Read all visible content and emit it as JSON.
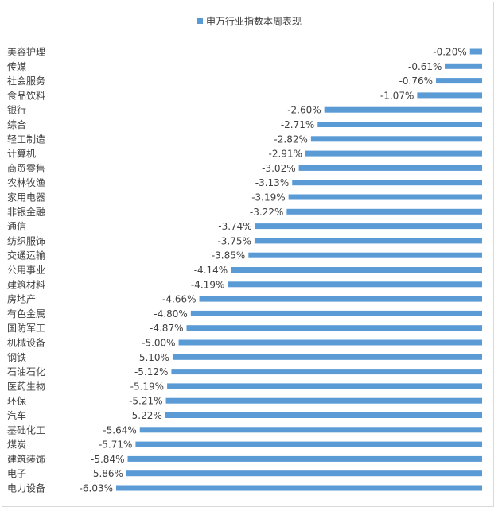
{
  "chart_data": {
    "type": "bar",
    "orientation": "horizontal",
    "title": "",
    "legend": {
      "position": "top",
      "entries": [
        "申万行业指数本周表现"
      ]
    },
    "series": [
      {
        "name": "申万行业指数本周表现",
        "color": "#5b9bd5",
        "values": [
          -0.2,
          -0.61,
          -0.76,
          -1.07,
          -2.6,
          -2.71,
          -2.82,
          -2.91,
          -3.02,
          -3.13,
          -3.19,
          -3.22,
          -3.74,
          -3.75,
          -3.85,
          -4.14,
          -4.19,
          -4.66,
          -4.8,
          -4.87,
          -5.0,
          -5.1,
          -5.12,
          -5.19,
          -5.21,
          -5.22,
          -5.64,
          -5.71,
          -5.84,
          -5.86,
          -6.03
        ]
      }
    ],
    "categories": [
      "美容护理",
      "传媒",
      "社会服务",
      "食品饮料",
      "银行",
      "综合",
      "轻工制造",
      "计算机",
      "商贸零售",
      "农林牧渔",
      "家用电器",
      "非银金融",
      "通信",
      "纺织服饰",
      "交通运输",
      "公用事业",
      "建筑材料",
      "房地产",
      "有色金属",
      "国防军工",
      "机械设备",
      "钢铁",
      "石油石化",
      "医药生物",
      "环保",
      "汽车",
      "基础化工",
      "煤炭",
      "建筑装饰",
      "电子",
      "电力设备"
    ],
    "value_labels": [
      "-0.20%",
      "-0.61%",
      "-0.76%",
      "-1.07%",
      "-2.60%",
      "-2.71%",
      "-2.82%",
      "-2.91%",
      "-3.02%",
      "-3.13%",
      "-3.19%",
      "-3.22%",
      "-3.74%",
      "-3.75%",
      "-3.85%",
      "-4.14%",
      "-4.19%",
      "-4.66%",
      "-4.80%",
      "-4.87%",
      "-5.00%",
      "-5.10%",
      "-5.12%",
      "-5.19%",
      "-5.21%",
      "-5.22%",
      "-5.64%",
      "-5.71%",
      "-5.84%",
      "-5.86%",
      "-6.03%"
    ],
    "value_unit": "%",
    "xlim": [
      -6.03,
      0
    ],
    "xlabel": "",
    "ylabel": "",
    "grid": false
  }
}
